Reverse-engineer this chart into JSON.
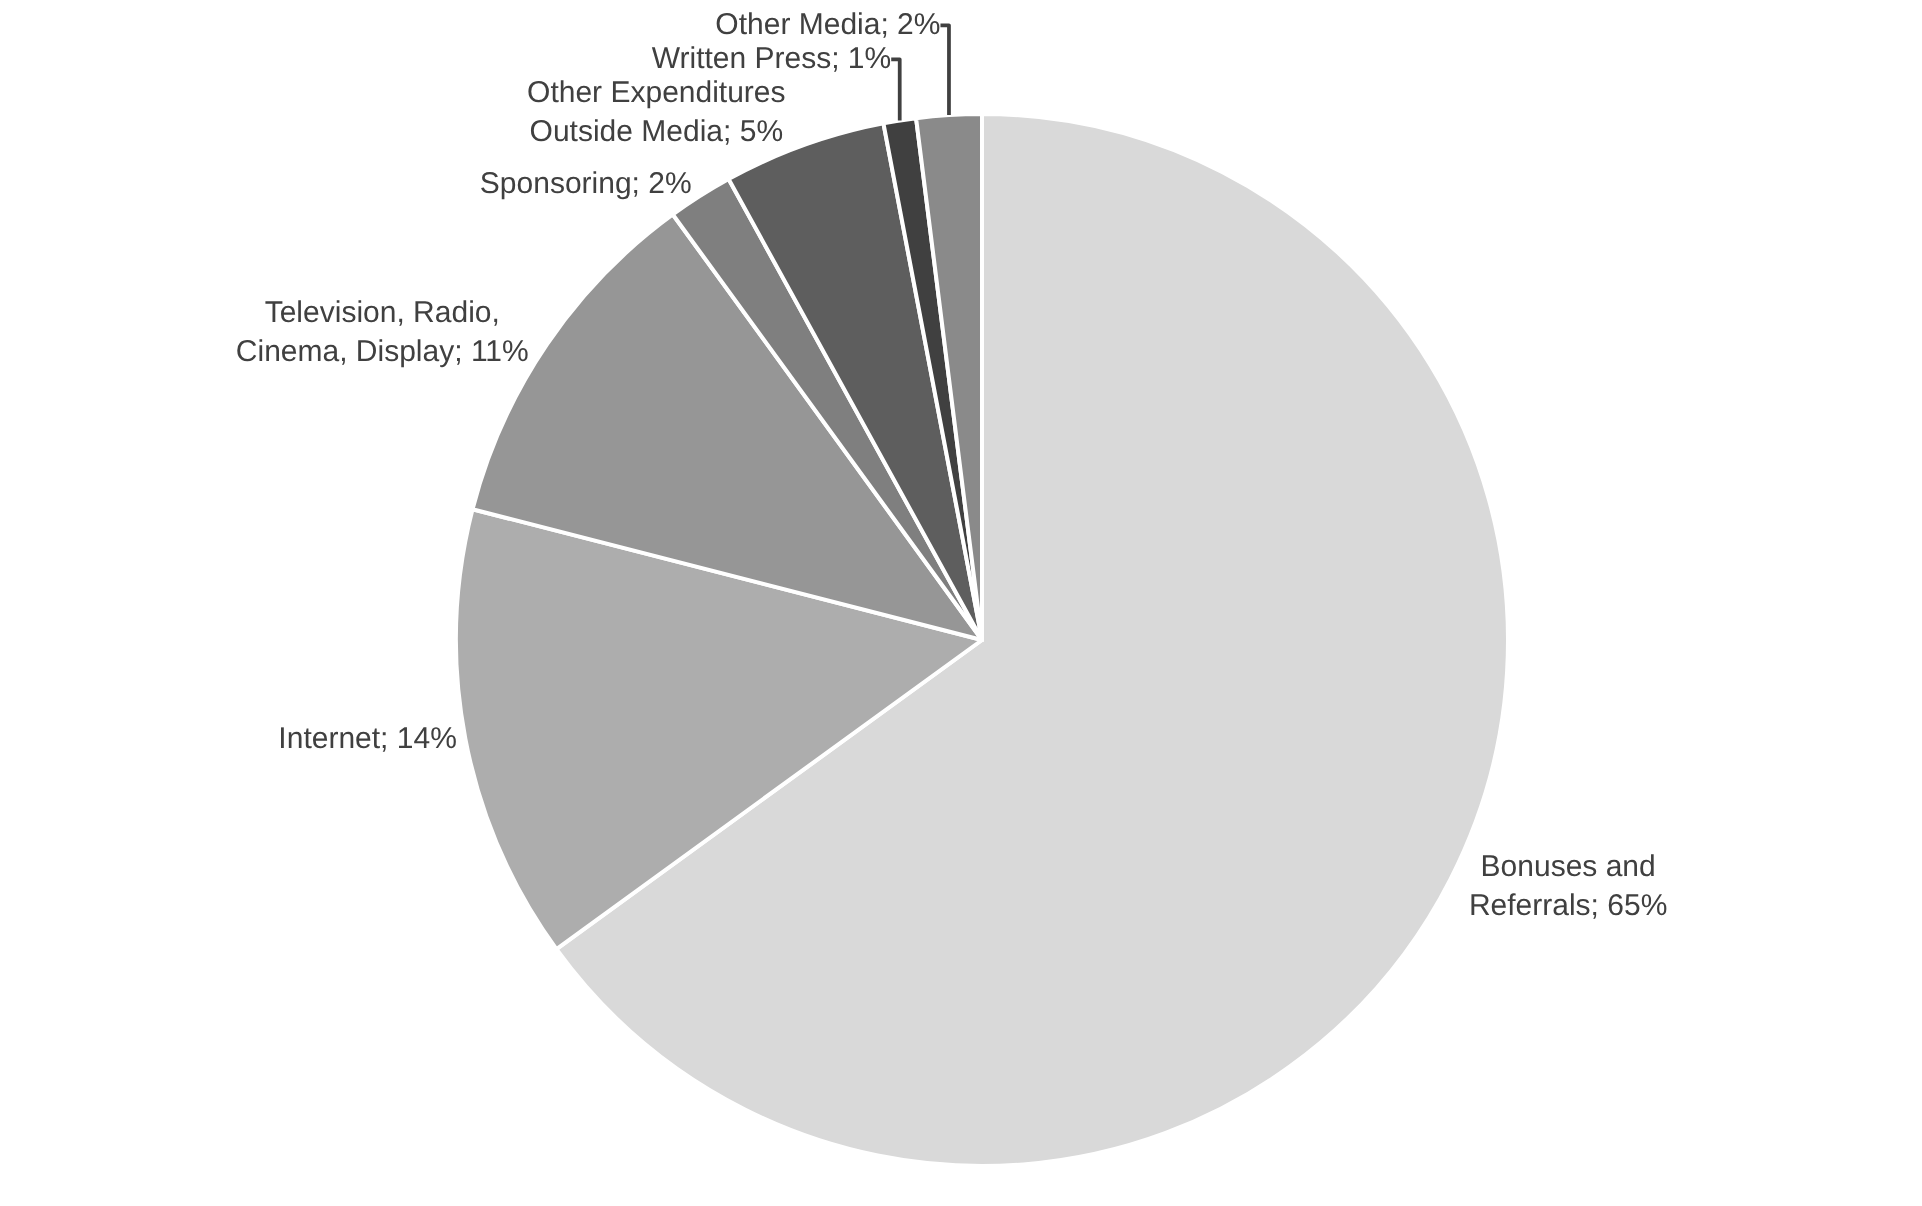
{
  "chart_data": {
    "type": "pie",
    "categories": [
      "Bonuses and Referrals",
      "Internet",
      "Television, Radio, Cinema, Display",
      "Sponsoring",
      "Other Expenditures Outside Media",
      "Written Press",
      "Other Media"
    ],
    "values": [
      65,
      14,
      11,
      2,
      5,
      1,
      2
    ],
    "value_labels": [
      "65%",
      "14%",
      "11%",
      "2%",
      "5%",
      "1%",
      "2%"
    ],
    "colors": [
      "#d9d9d9",
      "#adadad",
      "#969696",
      "#7f7f7f",
      "#5e5e5e",
      "#404040",
      "#8a8a8a"
    ],
    "legend": false
  }
}
